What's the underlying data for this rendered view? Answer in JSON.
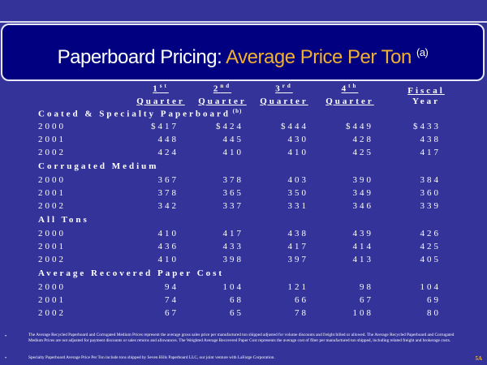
{
  "title": {
    "main": "Paperboard Pricing: ",
    "accent": "Average Price Per Ton",
    "note": "(a)"
  },
  "columns": [
    {
      "num": "1",
      "sup": "st",
      "label": "Quarter"
    },
    {
      "num": "2",
      "sup": "nd",
      "label": "Quarter"
    },
    {
      "num": "3",
      "sup": "rd",
      "label": "Quarter"
    },
    {
      "num": "4",
      "sup": "th",
      "label": "Quarter"
    },
    {
      "num": "Fiscal",
      "sup": "",
      "label": "Year"
    }
  ],
  "sections": [
    {
      "name": "Coated & Specialty Paperboard",
      "note": "(b)",
      "rows": [
        {
          "year": "2000",
          "values": [
            "$417",
            "$424",
            "$444",
            "$449",
            "$433"
          ]
        },
        {
          "year": "2001",
          "values": [
            "448",
            "445",
            "430",
            "428",
            "438"
          ]
        },
        {
          "year": "2002",
          "values": [
            "424",
            "410",
            "410",
            "425",
            "417"
          ]
        }
      ]
    },
    {
      "name": "Corrugated Medium",
      "note": "",
      "rows": [
        {
          "year": "2000",
          "values": [
            "367",
            "378",
            "403",
            "390",
            "384"
          ]
        },
        {
          "year": "2001",
          "values": [
            "378",
            "365",
            "350",
            "349",
            "360"
          ]
        },
        {
          "year": "2002",
          "values": [
            "342",
            "337",
            "331",
            "346",
            "339"
          ]
        }
      ]
    },
    {
      "name": "All Tons",
      "note": "",
      "rows": [
        {
          "year": "2000",
          "values": [
            "410",
            "417",
            "438",
            "439",
            "426"
          ]
        },
        {
          "year": "2001",
          "values": [
            "436",
            "433",
            "417",
            "414",
            "425"
          ]
        },
        {
          "year": "2002",
          "values": [
            "410",
            "398",
            "397",
            "413",
            "405"
          ]
        }
      ]
    },
    {
      "name": "Average Recovered Paper Cost",
      "note": "",
      "rows": [
        {
          "year": "2000",
          "values": [
            "94",
            "104",
            "121",
            "98",
            "104"
          ]
        },
        {
          "year": "2001",
          "values": [
            "74",
            "68",
            "66",
            "67",
            "69"
          ]
        },
        {
          "year": "2002",
          "values": [
            "67",
            "65",
            "78",
            "108",
            "80"
          ]
        }
      ]
    }
  ],
  "footnotes": [
    "The Average Recycled Paperboard and Corrugated Medium Prices represent the average gross sales price per manufactured ton shipped adjusted for volume discounts and freight billed or allowed.  The Average Recycled Paperboard and Corrugated Medium Prices are not adjusted for payment discounts or sales returns and allowances.  The Weighted Average Recovered Paper Cost represents the average cost of fiber per manufactured ton shipped, including related freight and brokerage costs.",
    "Specialty Paperboard Average Price Per Ton include tons shipped by Seven Hills Paperboard LLC, our joint venture with LaFarge Corporation."
  ],
  "page_number": "5A",
  "colors": {
    "background": "#333399",
    "title_box": "#000080",
    "accent": "#f0b030"
  }
}
